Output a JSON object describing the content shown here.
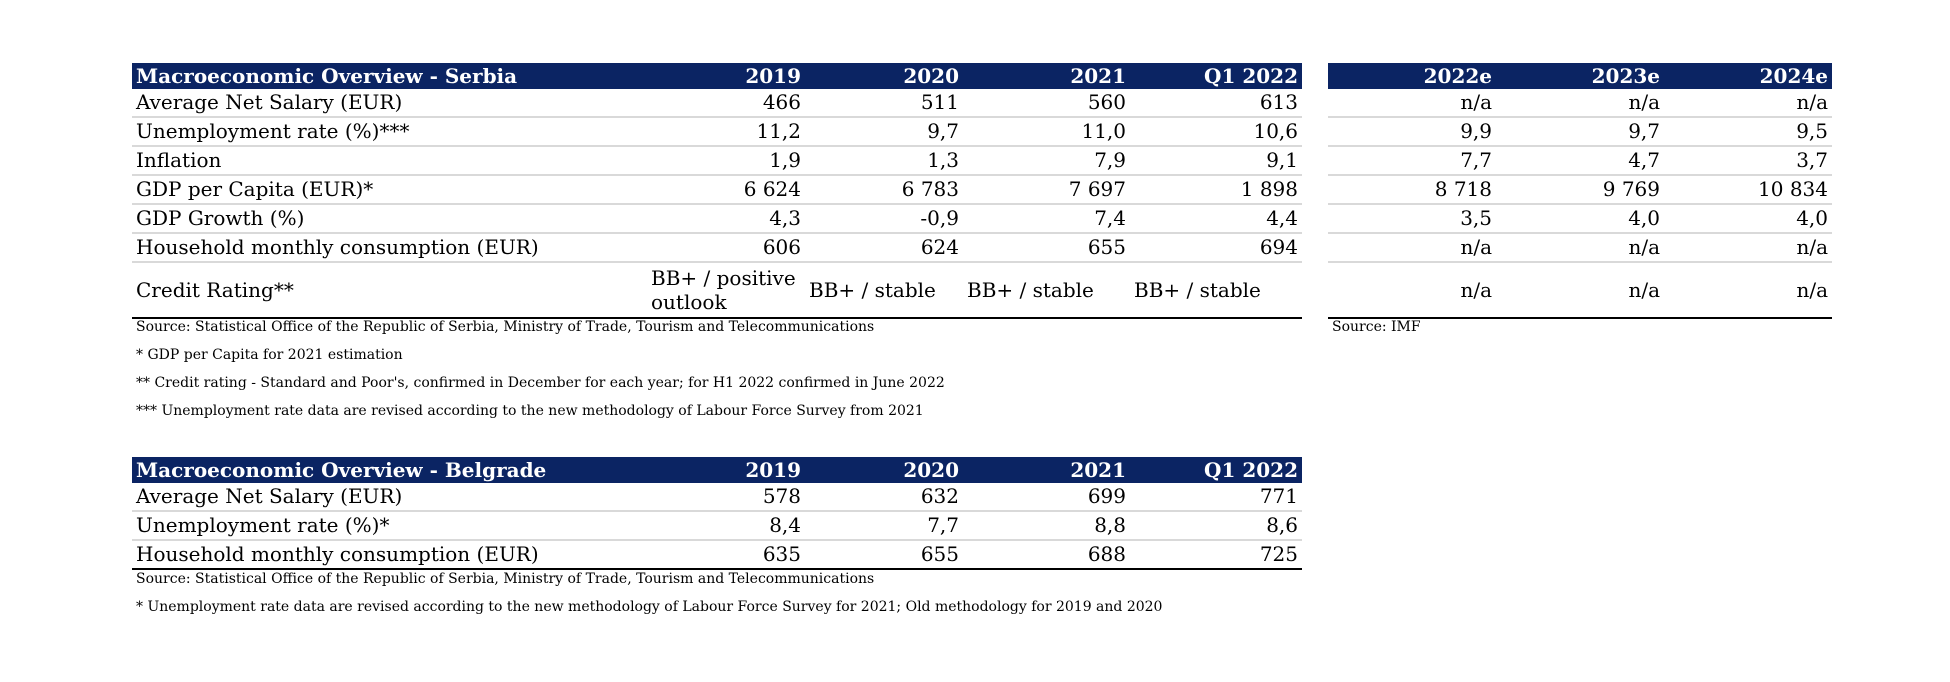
{
  "serbia": {
    "title": "Macroeconomic Overview - Serbia",
    "years": [
      "2019",
      "2020",
      "2021",
      "Q1 2022"
    ],
    "rows": [
      {
        "label": "Average Net Salary (EUR)",
        "values": [
          "466",
          "511",
          "560",
          "613"
        ]
      },
      {
        "label": "Unemployment rate (%)***",
        "values": [
          "11,2",
          "9,7",
          "11,0",
          "10,6"
        ]
      },
      {
        "label": "Inflation",
        "values": [
          "1,9",
          "1,3",
          "7,9",
          "9,1"
        ]
      },
      {
        "label": "GDP per Capita (EUR)*",
        "values": [
          "6 624",
          "6 783",
          "7 697",
          "1 898"
        ]
      },
      {
        "label": "GDP Growth (%)",
        "values": [
          "4,3",
          "-0,9",
          "7,4",
          "4,4"
        ]
      },
      {
        "label": "Household monthly consumption (EUR)",
        "values": [
          "606",
          "624",
          "655",
          "694"
        ]
      },
      {
        "label": "Credit Rating**",
        "values": [
          "BB+ / positive outlook",
          "BB+ / stable",
          "BB+ / stable",
          "BB+ / stable"
        ]
      }
    ],
    "notes": [
      "Source: Statistical Office of the Republic of Serbia, Ministry of Trade, Tourism and Telecommunications",
      "* GDP per Capita for 2021 estimation",
      "** Credit rating - Standard and Poor's, confirmed in December for each year; for H1 2022 confirmed in June 2022",
      "*** Unemployment rate data are revised according to the new methodology of Labour Force Survey from 2021"
    ]
  },
  "forecast": {
    "years": [
      "2022e",
      "2023e",
      "2024e"
    ],
    "rows": [
      [
        "n/a",
        "n/a",
        "n/a"
      ],
      [
        "9,9",
        "9,7",
        "9,5"
      ],
      [
        "7,7",
        "4,7",
        "3,7"
      ],
      [
        "8 718",
        "9 769",
        "10 834"
      ],
      [
        "3,5",
        "4,0",
        "4,0"
      ],
      [
        "n/a",
        "n/a",
        "n/a"
      ],
      [
        "n/a",
        "n/a",
        "n/a"
      ]
    ],
    "source": "Source: IMF"
  },
  "belgrade": {
    "title": "Macroeconomic Overview - Belgrade",
    "years": [
      "2019",
      "2020",
      "2021",
      "Q1 2022"
    ],
    "rows": [
      {
        "label": "Average Net Salary (EUR)",
        "values": [
          "578",
          "632",
          "699",
          "771"
        ]
      },
      {
        "label": "Unemployment rate (%)*",
        "values": [
          "8,4",
          "7,7",
          "8,8",
          "8,6"
        ]
      },
      {
        "label": "Household monthly consumption (EUR)",
        "values": [
          "635",
          "655",
          "688",
          "725"
        ]
      }
    ],
    "notes": [
      "Source: Statistical Office of the Republic of Serbia, Ministry of Trade, Tourism and Telecommunications",
      "* Unemployment rate data are revised according to the new methodology of Labour Force Survey for 2021; Old methodology for 2019 and 2020"
    ]
  }
}
